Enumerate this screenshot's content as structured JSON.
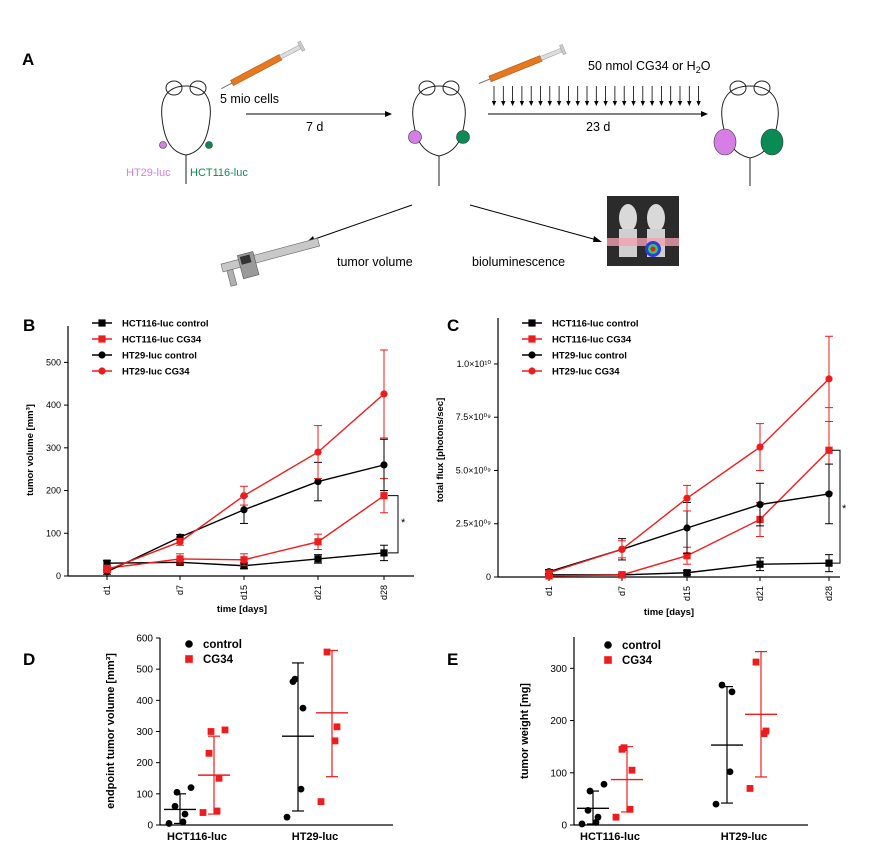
{
  "colors": {
    "black": "#000000",
    "red": "#ee1c1c",
    "purple": "#d67ee6",
    "green": "#0a8a55",
    "orange": "#e8781e",
    "sky": "#bfe6f3"
  },
  "panelA": {
    "letter": "A",
    "inject1": "5 mio cells",
    "arrow1": "7 d",
    "inject2_pre": "50 nmol CG34 or H",
    "inject2_sub": "2",
    "inject2_post": "O",
    "arrow2": "23 d",
    "label_left": "HT29-luc",
    "label_right": "HCT116-luc",
    "readout_volume": "tumor volume",
    "readout_lum": "bioluminescence",
    "icons": [
      "syringe-icon",
      "mouse-outline-icon",
      "caliper-icon",
      "bioluminescence-image-icon"
    ]
  },
  "chart_data": [
    {
      "panel": "B",
      "type": "line",
      "title": "",
      "xlabel": "time [days]",
      "ylabel": "tumor volume [mm³]",
      "categories": [
        "d1",
        "d7",
        "d15",
        "d21",
        "d28"
      ],
      "ylim": [
        0,
        550
      ],
      "yticks": [
        "0",
        "100",
        "200",
        "300",
        "400",
        "500"
      ],
      "significance": "*",
      "legend_position": "top-left",
      "series": [
        {
          "name": "HCT116-luc control",
          "color": "#000000",
          "marker": "square",
          "values": [
            30,
            32,
            24,
            40,
            54
          ],
          "err": [
            6,
            6,
            7,
            10,
            18
          ]
        },
        {
          "name": "HCT116-luc CG34",
          "color": "#ee1c1c",
          "marker": "square",
          "values": [
            18,
            40,
            38,
            80,
            188
          ],
          "err": [
            5,
            12,
            14,
            18,
            40
          ]
        },
        {
          "name": "HT29-luc control",
          "color": "#000000",
          "marker": "circle",
          "values": [
            10,
            91,
            155,
            221,
            260
          ],
          "err": [
            6,
            6,
            32,
            45,
            60
          ]
        },
        {
          "name": "HT29-luc CG34",
          "color": "#ee1c1c",
          "marker": "circle",
          "values": [
            14,
            80,
            188,
            290,
            426
          ],
          "err": [
            6,
            8,
            22,
            62,
            103
          ]
        }
      ]
    },
    {
      "panel": "C",
      "type": "line",
      "title": "",
      "xlabel": "time [days]",
      "ylabel": "total flux [photons/sec]",
      "categories": [
        "d1",
        "d7",
        "d15",
        "d21",
        "d28"
      ],
      "ylim": [
        0,
        11.5
      ],
      "yticks": [
        "0",
        "2.5×10⁰⁹",
        "5.0×10⁰⁹",
        "7.5×10⁰⁹",
        "1.0×10¹⁰"
      ],
      "units_note": "values in units of 1e9 photons/sec",
      "significance": "*",
      "legend_position": "top-left",
      "series": [
        {
          "name": "HCT116-luc control",
          "color": "#000000",
          "marker": "square",
          "values": [
            0.1,
            0.1,
            0.2,
            0.6,
            0.65
          ],
          "err": [
            0.05,
            0.05,
            0.1,
            0.3,
            0.4
          ]
        },
        {
          "name": "HCT116-luc CG34",
          "color": "#ee1c1c",
          "marker": "square",
          "values": [
            0.05,
            0.1,
            1.0,
            2.7,
            5.95
          ],
          "err": [
            0.05,
            0.05,
            0.4,
            0.8,
            2.0
          ]
        },
        {
          "name": "HT29-luc control",
          "color": "#000000",
          "marker": "circle",
          "values": [
            0.25,
            1.3,
            2.3,
            3.4,
            3.9
          ],
          "err": [
            0.1,
            0.5,
            1.2,
            1.0,
            1.4
          ]
        },
        {
          "name": "HT29-luc CG34",
          "color": "#ee1c1c",
          "marker": "circle",
          "values": [
            0.2,
            1.3,
            3.7,
            6.1,
            9.3
          ],
          "err": [
            0.1,
            0.4,
            0.6,
            1.1,
            2.0
          ]
        }
      ]
    },
    {
      "panel": "D",
      "type": "scatter",
      "ylabel": "endpoint tumor volume [mm³]",
      "categories": [
        "HCT116-luc",
        "HT29-luc"
      ],
      "ylim": [
        0,
        600
      ],
      "yticks": [
        "0",
        "100",
        "200",
        "300",
        "400",
        "500",
        "600"
      ],
      "legend_position": "top-left",
      "series": [
        {
          "name": "control",
          "color": "#000000",
          "marker": "circle",
          "groups": [
            {
              "points": [
                5,
                10,
                35,
                60,
                105,
                120
              ],
              "mean": 50,
              "sd_low": 5,
              "sd_high": 100
            },
            {
              "points": [
                25,
                115,
                375,
                460,
                468
              ],
              "mean": 285,
              "sd_low": 45,
              "sd_high": 520
            }
          ]
        },
        {
          "name": "CG34",
          "color": "#ee1c1c",
          "marker": "square",
          "groups": [
            {
              "points": [
                40,
                45,
                150,
                230,
                300,
                305
              ],
              "mean": 160,
              "sd_low": 35,
              "sd_high": 285
            },
            {
              "points": [
                75,
                270,
                315,
                555
              ],
              "mean": 360,
              "sd_low": 155,
              "sd_high": 560
            }
          ]
        }
      ]
    },
    {
      "panel": "E",
      "type": "scatter",
      "ylabel": "tumor weight [mg]",
      "categories": [
        "HCT116-luc",
        "HT29-luc"
      ],
      "ylim": [
        0,
        360
      ],
      "yticks": [
        "0",
        "100",
        "200",
        "300"
      ],
      "legend_position": "top-left",
      "series": [
        {
          "name": "control",
          "color": "#000000",
          "marker": "circle",
          "groups": [
            {
              "points": [
                2,
                5,
                15,
                28,
                65,
                78
              ],
              "mean": 32,
              "sd_low": 2,
              "sd_high": 65
            },
            {
              "points": [
                40,
                102,
                255,
                268
              ],
              "mean": 153,
              "sd_low": 42,
              "sd_high": 265
            }
          ]
        },
        {
          "name": "CG34",
          "color": "#ee1c1c",
          "marker": "square",
          "groups": [
            {
              "points": [
                15,
                30,
                105,
                145,
                148
              ],
              "mean": 87,
              "sd_low": 25,
              "sd_high": 150
            },
            {
              "points": [
                70,
                175,
                180,
                312
              ],
              "mean": 212,
              "sd_low": 92,
              "sd_high": 332
            }
          ]
        }
      ]
    }
  ]
}
